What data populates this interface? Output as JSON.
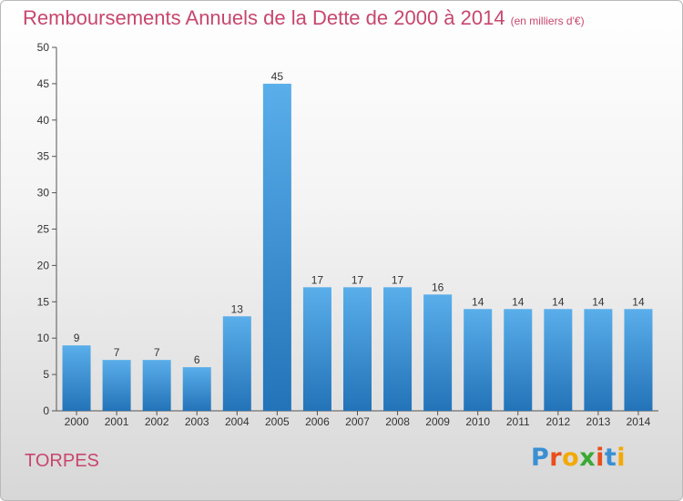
{
  "header": {
    "title": "Remboursements Annuels de la Dette de 2000 à 2014",
    "unit": "(en milliers d'€)"
  },
  "footer": {
    "commune": "TORPES",
    "brand_letters": [
      "P",
      "r",
      "o",
      "x",
      "i",
      "t",
      "i"
    ],
    "brand_colors": [
      "#3a8fd3",
      "#e94e1b",
      "#f2a900",
      "#3aa935",
      "#e94e1b",
      "#3a8fd3",
      "#f2a900"
    ]
  },
  "colors": {
    "title": "#c8466e",
    "bar_light": "#5aaeea",
    "bar_dark": "#2373b8",
    "axis": "#555555",
    "grid": "#dddddd"
  },
  "chart_data": {
    "type": "bar",
    "title": "Remboursements Annuels de la Dette de 2000 à 2014",
    "subtitle": "(en milliers d'€)",
    "categories": [
      "2000",
      "2001",
      "2002",
      "2003",
      "2004",
      "2005",
      "2006",
      "2007",
      "2008",
      "2009",
      "2010",
      "2011",
      "2012",
      "2013",
      "2014"
    ],
    "values": [
      9,
      7,
      7,
      6,
      13,
      45,
      17,
      17,
      17,
      16,
      14,
      14,
      14,
      14,
      14
    ],
    "ylim": [
      0,
      50
    ],
    "yticks": [
      0,
      5,
      10,
      15,
      20,
      25,
      30,
      35,
      40,
      45,
      50
    ],
    "grid": false
  }
}
